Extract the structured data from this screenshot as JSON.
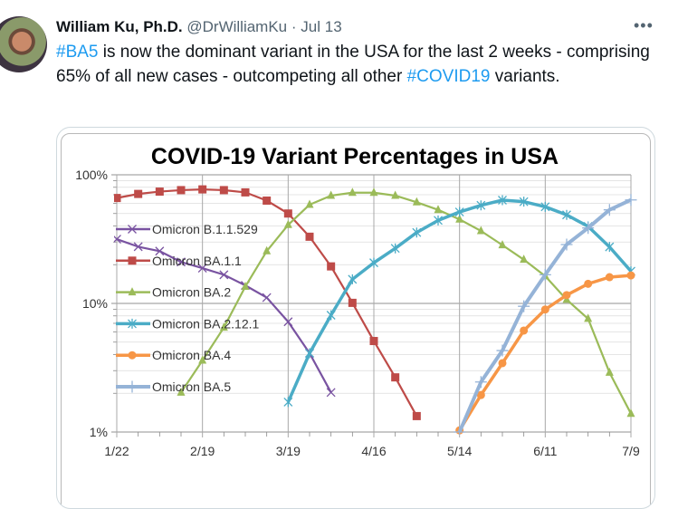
{
  "tweet": {
    "name": "William Ku, Ph.D.",
    "handle": "@DrWilliamKu",
    "separator": "·",
    "date": "Jul 13",
    "more_icon": "ellipsis-icon",
    "text_parts": [
      {
        "type": "hashtag",
        "text": "#BA5"
      },
      {
        "type": "text",
        "text": " is now the dominant variant in the USA for the last 2 weeks - comprising 65% of all new cases - outcompeting all other "
      },
      {
        "type": "hashtag",
        "text": "#COVID19"
      },
      {
        "type": "text",
        "text": " variants."
      }
    ],
    "hashtag_color": "#1d9bf0"
  },
  "chart_data": {
    "type": "line",
    "title": "COVID-19 Variant Percentages in USA",
    "xlabel": "",
    "ylabel": "",
    "y_scale": "log",
    "ylim": [
      1,
      100
    ],
    "y_ticks": [
      {
        "value": 1,
        "label": "1%"
      },
      {
        "value": 10,
        "label": "10%"
      },
      {
        "value": 100,
        "label": "100%"
      }
    ],
    "x_tick_labels": [
      "1/22",
      "2/19",
      "3/19",
      "4/16",
      "5/14",
      "6/11",
      "7/9"
    ],
    "x": [
      "1/22",
      "1/29",
      "2/5",
      "2/12",
      "2/19",
      "2/26",
      "3/5",
      "3/12",
      "3/19",
      "3/26",
      "4/2",
      "4/9",
      "4/16",
      "4/23",
      "4/30",
      "5/7",
      "5/14",
      "5/21",
      "5/28",
      "6/4",
      "6/11",
      "6/18",
      "6/25",
      "7/2",
      "7/9"
    ],
    "grid": true,
    "legend_position": "left",
    "series": [
      {
        "name": "Omicron B.1.1.529",
        "color": "#7953a1",
        "marker": "x",
        "values": [
          31.6,
          27.6,
          25.5,
          21,
          18.8,
          16.7,
          13.8,
          11.1,
          7.2,
          4.1,
          2.03,
          null,
          null,
          null,
          null,
          null,
          null,
          null,
          null,
          null,
          null,
          null,
          null,
          null,
          null
        ]
      },
      {
        "name": "Omicron BA.1.1",
        "color": "#be4b48",
        "marker": "square",
        "values": [
          66,
          71,
          74,
          76,
          77,
          76,
          73,
          63,
          50,
          33,
          19.4,
          10.1,
          5.1,
          2.66,
          1.33,
          null,
          null,
          null,
          null,
          null,
          null,
          null,
          null,
          null,
          null
        ]
      },
      {
        "name": "Omicron BA.2",
        "color": "#9bbb59",
        "marker": "triangle",
        "values": [
          null,
          null,
          null,
          2.03,
          3.6,
          6.5,
          13.5,
          25.5,
          40.8,
          58.6,
          68.9,
          72.6,
          72.6,
          68.9,
          61.2,
          53.4,
          45,
          36.6,
          28.4,
          21.9,
          16.3,
          10.7,
          7.6,
          2.9,
          1.39
        ]
      },
      {
        "name": "Omicron BA.2.12.1",
        "color": "#4bacc6",
        "marker": "asterisk",
        "values": [
          null,
          null,
          null,
          null,
          null,
          null,
          null,
          null,
          1.71,
          4.1,
          8.1,
          15.4,
          20.7,
          26.8,
          35.6,
          44.2,
          51.4,
          57.9,
          63.5,
          61.8,
          56.4,
          48.8,
          39.7,
          27.5,
          17.8
        ]
      },
      {
        "name": "Omicron BA.4",
        "color": "#f79646",
        "marker": "circle",
        "values": [
          null,
          null,
          null,
          null,
          null,
          null,
          null,
          null,
          null,
          null,
          null,
          null,
          null,
          null,
          null,
          null,
          1.03,
          1.94,
          3.43,
          6.15,
          8.97,
          11.6,
          14.2,
          16.0,
          16.5
        ]
      },
      {
        "name": "Omicron BA.5",
        "color": "#95b3d7",
        "marker": "plus",
        "values": [
          null,
          null,
          null,
          null,
          null,
          null,
          null,
          null,
          null,
          null,
          null,
          null,
          null,
          null,
          null,
          null,
          1.0,
          2.45,
          4.3,
          9.5,
          16.7,
          28.7,
          38.6,
          53.4,
          63.8
        ]
      }
    ]
  }
}
